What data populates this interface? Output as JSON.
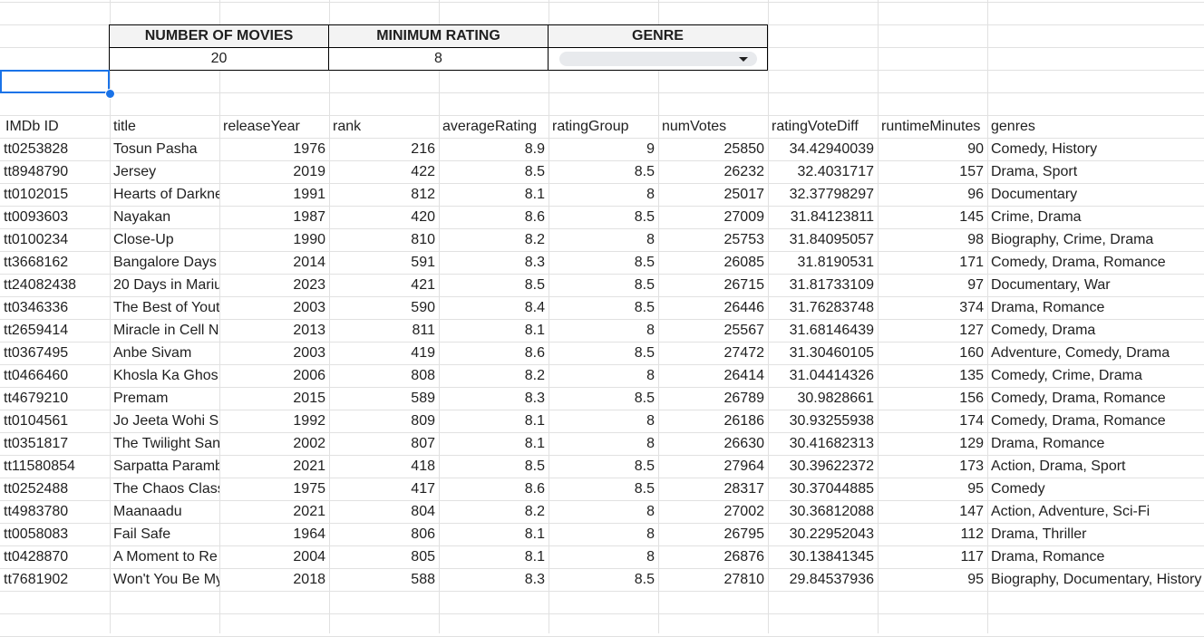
{
  "controls": {
    "headers": [
      "NUMBER OF MOVIES",
      "MINIMUM RATING",
      "GENRE"
    ],
    "number_of_movies": "20",
    "minimum_rating": "8",
    "genre": ""
  },
  "columns": [
    "IMDb ID",
    "title",
    "releaseYear",
    "rank",
    "averageRating",
    "ratingGroup",
    "numVotes",
    "ratingVoteDiff",
    "runtimeMinutes",
    "genres"
  ],
  "rows": [
    [
      "tt0253828",
      "Tosun Pasha",
      "1976",
      "216",
      "8.9",
      "9",
      "25850",
      "34.42940039",
      "90",
      "Comedy, History"
    ],
    [
      "tt8948790",
      "Jersey",
      "2019",
      "422",
      "8.5",
      "8.5",
      "26232",
      "32.4031717",
      "157",
      "Drama, Sport"
    ],
    [
      "tt0102015",
      "Hearts of Darkne",
      "1991",
      "812",
      "8.1",
      "8",
      "25017",
      "32.37798297",
      "96",
      "Documentary"
    ],
    [
      "tt0093603",
      "Nayakan",
      "1987",
      "420",
      "8.6",
      "8.5",
      "27009",
      "31.84123811",
      "145",
      "Crime, Drama"
    ],
    [
      "tt0100234",
      "Close-Up",
      "1990",
      "810",
      "8.2",
      "8",
      "25753",
      "31.84095057",
      "98",
      "Biography, Crime, Drama"
    ],
    [
      "tt3668162",
      "Bangalore Days",
      "2014",
      "591",
      "8.3",
      "8.5",
      "26085",
      "31.8190531",
      "171",
      "Comedy, Drama, Romance"
    ],
    [
      "tt24082438",
      "20 Days in Mariu",
      "2023",
      "421",
      "8.5",
      "8.5",
      "26715",
      "31.81733109",
      "97",
      "Documentary, War"
    ],
    [
      "tt0346336",
      "The Best of Yout",
      "2003",
      "590",
      "8.4",
      "8.5",
      "26446",
      "31.76283748",
      "374",
      "Drama, Romance"
    ],
    [
      "tt2659414",
      "Miracle in Cell N",
      "2013",
      "811",
      "8.1",
      "8",
      "25567",
      "31.68146439",
      "127",
      "Comedy, Drama"
    ],
    [
      "tt0367495",
      "Anbe Sivam",
      "2003",
      "419",
      "8.6",
      "8.5",
      "27472",
      "31.30460105",
      "160",
      "Adventure, Comedy, Drama"
    ],
    [
      "tt0466460",
      "Khosla Ka Ghos",
      "2006",
      "808",
      "8.2",
      "8",
      "26414",
      "31.04414326",
      "135",
      "Comedy, Crime, Drama"
    ],
    [
      "tt4679210",
      "Premam",
      "2015",
      "589",
      "8.3",
      "8.5",
      "26789",
      "30.9828661",
      "156",
      "Comedy, Drama, Romance"
    ],
    [
      "tt0104561",
      "Jo Jeeta Wohi S",
      "1992",
      "809",
      "8.1",
      "8",
      "26186",
      "30.93255938",
      "174",
      "Comedy, Drama, Romance"
    ],
    [
      "tt0351817",
      "The Twilight San",
      "2002",
      "807",
      "8.1",
      "8",
      "26630",
      "30.41682313",
      "129",
      "Drama, Romance"
    ],
    [
      "tt11580854",
      "Sarpatta Paramb",
      "2021",
      "418",
      "8.5",
      "8.5",
      "27964",
      "30.39622372",
      "173",
      "Action, Drama, Sport"
    ],
    [
      "tt0252488",
      "The Chaos Class",
      "1975",
      "417",
      "8.6",
      "8.5",
      "28317",
      "30.37044885",
      "95",
      "Comedy"
    ],
    [
      "tt4983780",
      "Maanaadu",
      "2021",
      "804",
      "8.2",
      "8",
      "27002",
      "30.36812088",
      "147",
      "Action, Adventure, Sci-Fi"
    ],
    [
      "tt0058083",
      "Fail Safe",
      "1964",
      "806",
      "8.1",
      "8",
      "26795",
      "30.22952043",
      "112",
      "Drama, Thriller"
    ],
    [
      "tt0428870",
      "A Moment to Re",
      "2004",
      "805",
      "8.1",
      "8",
      "26876",
      "30.13841345",
      "117",
      "Drama, Romance"
    ],
    [
      "tt7681902",
      "Won't You Be My",
      "2018",
      "588",
      "8.3",
      "8.5",
      "27810",
      "29.84537936",
      "95",
      "Biography, Documentary, History"
    ]
  ]
}
